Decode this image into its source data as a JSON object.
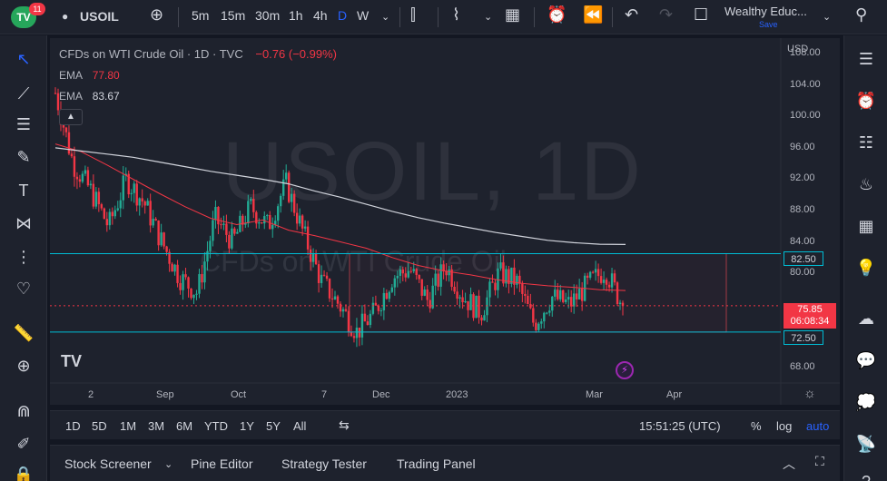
{
  "topbar": {
    "logo_text": "TV",
    "badge_count": "11",
    "symbol": "USOIL",
    "timeframes": [
      "5m",
      "15m",
      "30m",
      "1h",
      "4h",
      "D",
      "W"
    ],
    "active_timeframe": "D",
    "layout_name": "Wealthy Educ...",
    "save_label": "Save"
  },
  "legend": {
    "title": "CFDs on WTI Crude Oil · 1D · TVC",
    "change": "−0.76 (−0.99%)",
    "ema1_label": "EMA",
    "ema1_value": "77.80",
    "ema2_label": "EMA",
    "ema2_value": "83.67"
  },
  "watermark": {
    "symbol_tf": "USOIL, 1D",
    "description": "CFDs on WTI Crude Oil"
  },
  "price_axis": {
    "currency": "USD",
    "labels": [
      "108.00",
      "104.00",
      "100.00",
      "96.00",
      "92.00",
      "88.00",
      "84.00",
      "80.00",
      "68.00"
    ],
    "resistance_tag": "82.50",
    "support_tag": "72.50",
    "last_price": "75.85",
    "countdown": "06:08:34"
  },
  "time_axis": {
    "labels": [
      "2",
      "Sep",
      "Oct",
      "7",
      "Dec",
      "2023",
      "Mar",
      "Apr"
    ]
  },
  "chart_data": {
    "type": "candlestick",
    "title": "CFDs on WTI Crude Oil · 1D · TVC",
    "ylim": [
      66,
      110
    ],
    "horizontal_lines": [
      82.5,
      72.5
    ],
    "rectangle": {
      "top": 82.5,
      "bottom": 72.5
    },
    "ema_fast": [
      96.5,
      95.5,
      93.8,
      92.0,
      90.2,
      88.5,
      87.0,
      86.2,
      86.8,
      85.5,
      84.8,
      84.0,
      83.2,
      82.0,
      81.0,
      80.3,
      79.8,
      79.2,
      78.7,
      78.4,
      78.2,
      77.9,
      77.8
    ],
    "ema_slow": [
      96.0,
      95.6,
      95.2,
      94.8,
      94.2,
      93.6,
      93.0,
      92.5,
      92.0,
      91.4,
      90.5,
      89.7,
      88.8,
      87.9,
      87.1,
      86.4,
      85.8,
      85.2,
      84.7,
      84.2,
      83.9,
      83.7,
      83.67
    ],
    "closes": [
      103.0,
      94.0,
      90.5,
      86.0,
      92.0,
      89.0,
      84.0,
      79.5,
      77.5,
      87.0,
      84.0,
      88.5,
      86.0,
      91.5,
      85.0,
      79.0,
      76.0,
      72.5,
      75.0,
      79.5,
      80.5,
      76.5,
      81.0,
      77.0,
      75.0,
      80.0,
      79.0,
      73.5,
      77.0,
      76.0,
      78.5,
      80.5,
      75.85
    ],
    "last_close": 75.85
  },
  "range_bar": {
    "ranges": [
      "1D",
      "5D",
      "1M",
      "3M",
      "6M",
      "YTD",
      "1Y",
      "5Y",
      "All"
    ],
    "clock": "15:51:25 (UTC)",
    "percent": "%",
    "log": "log",
    "auto": "auto"
  },
  "bottom_tabs": [
    "Stock Screener",
    "Pine Editor",
    "Strategy Tester",
    "Trading Panel"
  ],
  "colors": {
    "up": "#22ab94",
    "down": "#f23645",
    "ema_fast": "#f23645",
    "ema_slow": "#d1d4dc",
    "level": "#00bcd4"
  }
}
